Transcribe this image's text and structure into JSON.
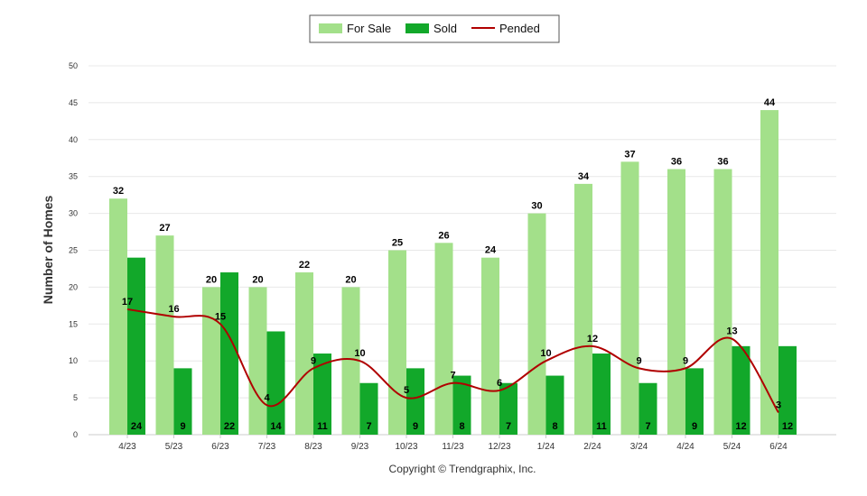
{
  "chart_data": {
    "type": "bar",
    "categories": [
      "4/23",
      "5/23",
      "6/23",
      "7/23",
      "8/23",
      "9/23",
      "10/23",
      "11/23",
      "12/23",
      "1/24",
      "2/24",
      "3/24",
      "4/24",
      "5/24",
      "6/24"
    ],
    "series": [
      {
        "name": "For Sale",
        "type": "bar",
        "color": "#a3e08a",
        "values": [
          32,
          27,
          20,
          20,
          22,
          20,
          25,
          26,
          24,
          30,
          34,
          37,
          36,
          36,
          44
        ]
      },
      {
        "name": "Sold",
        "type": "bar",
        "color": "#12a82a",
        "values": [
          24,
          9,
          22,
          14,
          11,
          7,
          9,
          8,
          7,
          8,
          11,
          7,
          9,
          12,
          12
        ]
      },
      {
        "name": "Pended",
        "type": "line",
        "color": "#b00000",
        "values": [
          17,
          16,
          15,
          4,
          9,
          10,
          5,
          7,
          6,
          10,
          12,
          9,
          9,
          13,
          3
        ]
      }
    ],
    "ylabel": "Number of Homes",
    "ylim": [
      0,
      50
    ],
    "yticks": [
      0,
      5,
      10,
      15,
      20,
      25,
      30,
      35,
      40,
      45,
      50
    ],
    "grid": true,
    "legend_position": "top-center"
  },
  "footer": {
    "copyright": "Copyright © Trendgraphix, Inc."
  }
}
